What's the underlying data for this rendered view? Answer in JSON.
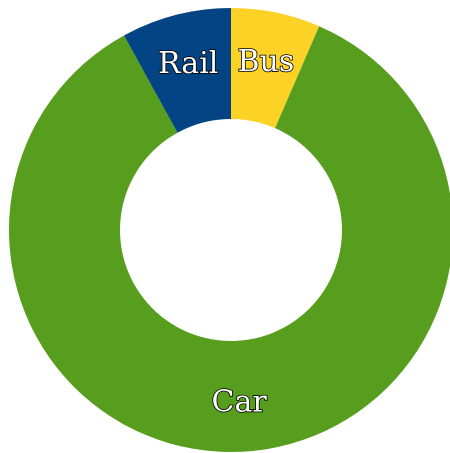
{
  "chart_data": {
    "type": "pie",
    "variant": "donut",
    "slices": [
      {
        "label": "Bus",
        "value": 6.5,
        "color": "#FDD227"
      },
      {
        "label": "Car",
        "value": 85.5,
        "color": "#579E1E"
      },
      {
        "label": "Rail",
        "value": 8.0,
        "color": "#034484"
      }
    ],
    "start_angle_deg": 0,
    "direction": "clockwise",
    "legend": "none"
  }
}
